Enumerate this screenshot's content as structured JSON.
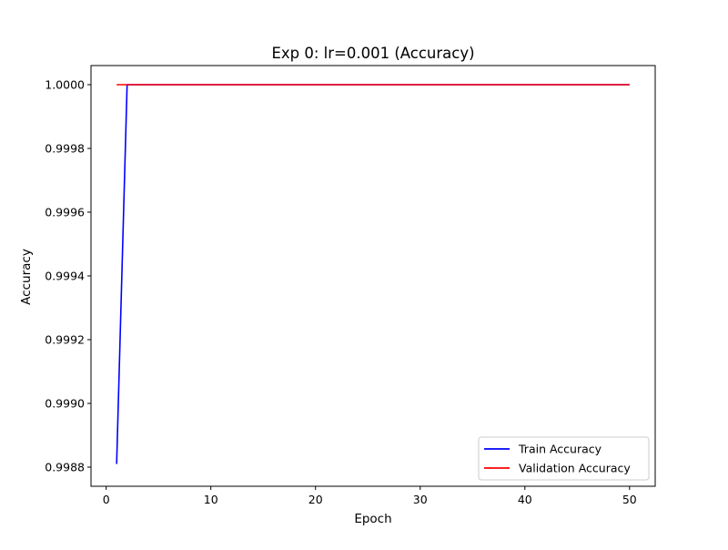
{
  "chart_data": {
    "type": "line",
    "title": "Exp 0: lr=0.001 (Accuracy)",
    "xlabel": "Epoch",
    "ylabel": "Accuracy",
    "xlim": [
      -1.45,
      52.45
    ],
    "ylim": [
      0.99874,
      1.00006
    ],
    "xticks": [
      0,
      10,
      20,
      30,
      40,
      50
    ],
    "xtick_labels": [
      "0",
      "10",
      "20",
      "30",
      "40",
      "50"
    ],
    "yticks": [
      0.9988,
      0.999,
      0.9992,
      0.9994,
      0.9996,
      0.9998,
      1.0
    ],
    "ytick_labels": [
      "0.9988",
      "0.9990",
      "0.9992",
      "0.9994",
      "0.9996",
      "0.9998",
      "1.0000"
    ],
    "grid": false,
    "legend_position": "bottom-right",
    "series": [
      {
        "name": "Train Accuracy",
        "color": "#0000ff",
        "x": [
          1,
          2,
          3,
          4,
          5,
          6,
          7,
          8,
          9,
          10,
          11,
          12,
          13,
          14,
          15,
          16,
          17,
          18,
          19,
          20,
          21,
          22,
          23,
          24,
          25,
          26,
          27,
          28,
          29,
          30,
          31,
          32,
          33,
          34,
          35,
          36,
          37,
          38,
          39,
          40,
          41,
          42,
          43,
          44,
          45,
          46,
          47,
          48,
          49,
          50
        ],
        "y": [
          0.99881,
          1.0,
          1.0,
          1.0,
          1.0,
          1.0,
          1.0,
          1.0,
          1.0,
          1.0,
          1.0,
          1.0,
          1.0,
          1.0,
          1.0,
          1.0,
          1.0,
          1.0,
          1.0,
          1.0,
          1.0,
          1.0,
          1.0,
          1.0,
          1.0,
          1.0,
          1.0,
          1.0,
          1.0,
          1.0,
          1.0,
          1.0,
          1.0,
          1.0,
          1.0,
          1.0,
          1.0,
          1.0,
          1.0,
          1.0,
          1.0,
          1.0,
          1.0,
          1.0,
          1.0,
          1.0,
          1.0,
          1.0,
          1.0,
          1.0
        ]
      },
      {
        "name": "Validation Accuracy",
        "color": "#ff0000",
        "x": [
          1,
          2,
          3,
          4,
          5,
          6,
          7,
          8,
          9,
          10,
          11,
          12,
          13,
          14,
          15,
          16,
          17,
          18,
          19,
          20,
          21,
          22,
          23,
          24,
          25,
          26,
          27,
          28,
          29,
          30,
          31,
          32,
          33,
          34,
          35,
          36,
          37,
          38,
          39,
          40,
          41,
          42,
          43,
          44,
          45,
          46,
          47,
          48,
          49,
          50
        ],
        "y": [
          1.0,
          1.0,
          1.0,
          1.0,
          1.0,
          1.0,
          1.0,
          1.0,
          1.0,
          1.0,
          1.0,
          1.0,
          1.0,
          1.0,
          1.0,
          1.0,
          1.0,
          1.0,
          1.0,
          1.0,
          1.0,
          1.0,
          1.0,
          1.0,
          1.0,
          1.0,
          1.0,
          1.0,
          1.0,
          1.0,
          1.0,
          1.0,
          1.0,
          1.0,
          1.0,
          1.0,
          1.0,
          1.0,
          1.0,
          1.0,
          1.0,
          1.0,
          1.0,
          1.0,
          1.0,
          1.0,
          1.0,
          1.0,
          1.0,
          1.0
        ]
      }
    ]
  }
}
